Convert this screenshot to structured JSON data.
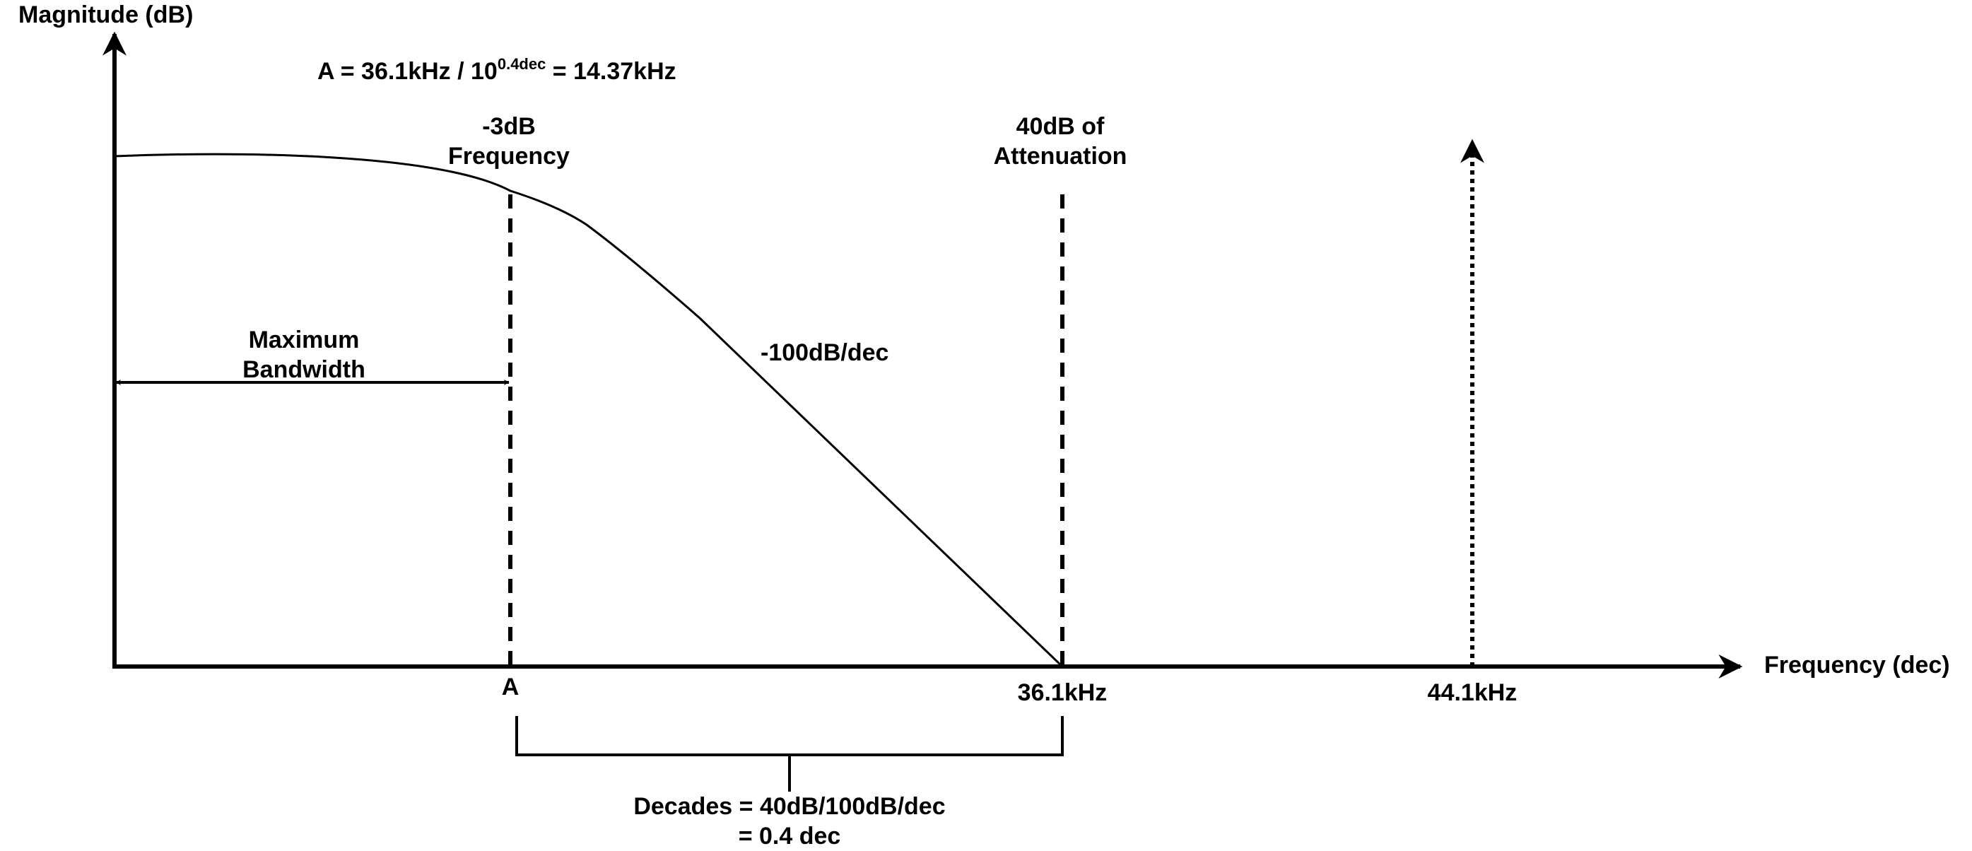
{
  "axes": {
    "y_label": "Magnitude (dB)",
    "x_label": "Frequency (dec)"
  },
  "formula": {
    "prefix": "A = 36.1kHz / 10",
    "exponent": "0.4dec",
    "suffix": " = 14.37kHz"
  },
  "annotations": {
    "cutoff_line1": "-3dB",
    "cutoff_line2": "Frequency",
    "attenuation_line1": "40dB of",
    "attenuation_line2": "Attenuation",
    "bandwidth_line1": "Maximum",
    "bandwidth_line2": "Bandwidth",
    "slope": "-100dB/dec",
    "decades_line1": "Decades = 40dB/100dB/dec",
    "decades_line2": "= 0.4 dec"
  },
  "ticks": {
    "a": "A",
    "f1": "36.1kHz",
    "f2": "44.1kHz"
  },
  "colors": {
    "ink": "#000000",
    "background": "#ffffff"
  }
}
